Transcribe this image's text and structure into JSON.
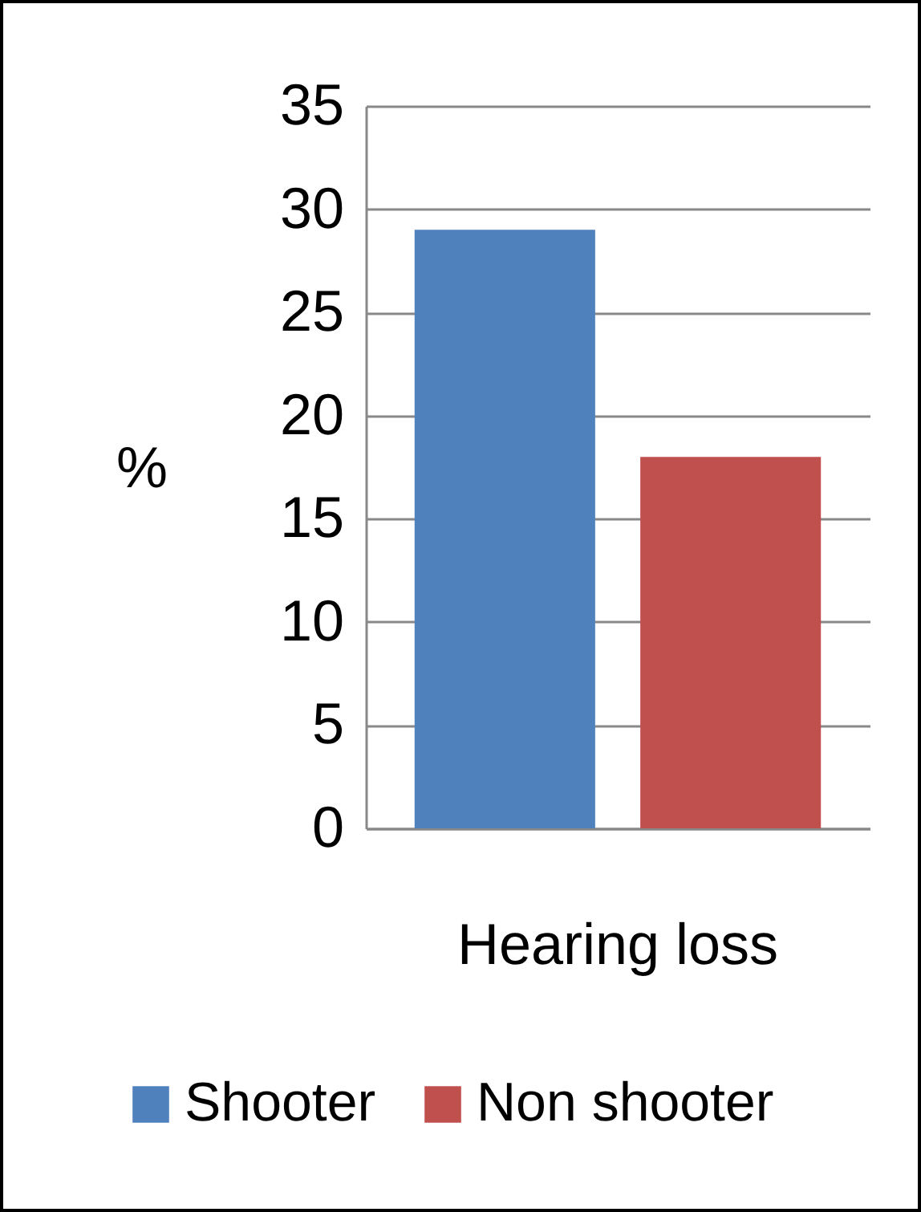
{
  "chart_data": {
    "type": "bar",
    "categories": [
      "Hearing loss"
    ],
    "ylabel": "%",
    "ylim": [
      0,
      35
    ],
    "yticks": [
      0,
      5,
      10,
      15,
      20,
      25,
      30,
      35
    ],
    "grid": "y",
    "legend": "bottom",
    "series": [
      {
        "name": "Shooter",
        "color": "#4f81bd",
        "values": [
          29
        ]
      },
      {
        "name": "Non shooter",
        "color": "#c0504d",
        "values": [
          18
        ]
      }
    ]
  }
}
